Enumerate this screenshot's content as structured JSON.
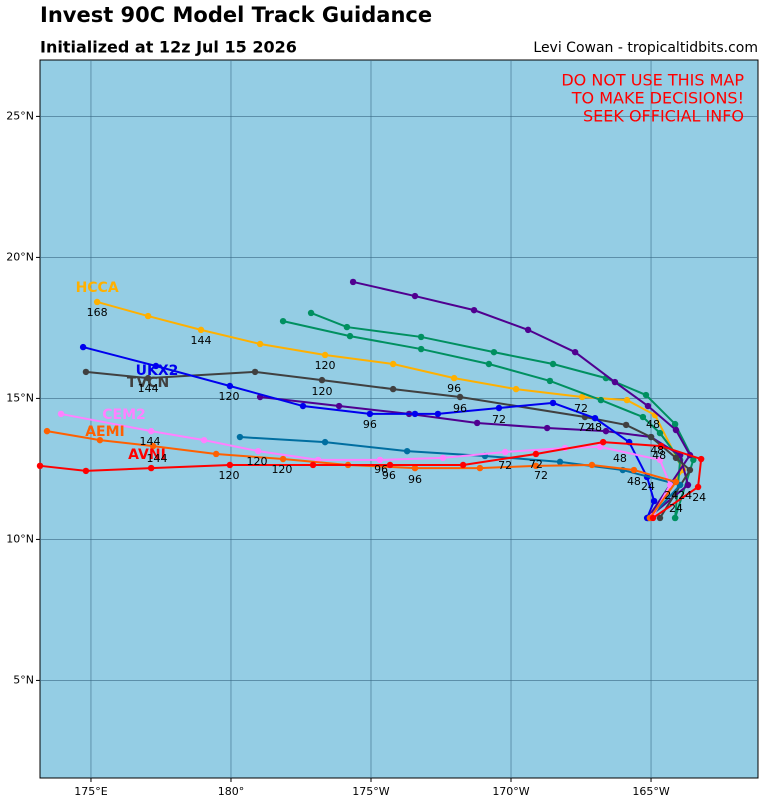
{
  "chart_data": {
    "type": "line",
    "title": "Invest 90C Model Track Guidance",
    "subtitle": "Initialized at 12z Jul 15 2026",
    "credit": "Levi Cowan - tropicaltidbits.com",
    "warning": [
      "DO NOT USE THIS MAP",
      "TO MAKE DECISIONS!",
      "SEEK OFFICIAL INFO"
    ],
    "xlim": [
      173.18,
      198.82
    ],
    "ylim": [
      1.54,
      27
    ],
    "xticks": [
      {
        "value": 175,
        "label": "175°E"
      },
      {
        "value": 180,
        "label": "180°"
      },
      {
        "value": 185,
        "label": "175°W"
      },
      {
        "value": 190,
        "label": "170°W"
      },
      {
        "value": 195,
        "label": "165°W"
      }
    ],
    "yticks": [
      {
        "value": 5,
        "label": "5°N"
      },
      {
        "value": 10,
        "label": "10°N"
      },
      {
        "value": 15,
        "label": "15°N"
      },
      {
        "value": 20,
        "label": "20°N"
      },
      {
        "value": 25,
        "label": "25°N"
      }
    ],
    "grid": true,
    "series": [
      {
        "name": "HCCA",
        "color": "#ffb000",
        "label_at": [
          175.22,
          18.91
        ],
        "x": [
          194.86,
          196.14,
          195.14,
          194.14,
          192.54,
          190.18,
          187.97,
          185.79,
          183.36,
          181.04,
          178.93,
          177.04,
          175.22
        ],
        "values": [
          10.76,
          12.46,
          14.41,
          14.94,
          15.05,
          15.33,
          15.72,
          16.22,
          16.54,
          16.93,
          17.43,
          17.92,
          18.42
        ]
      },
      {
        "color": "#009060",
        "x": [
          195.86,
          196.51,
          195.86,
          194.82,
          193.39,
          191.5,
          189.39,
          186.79,
          184.14,
          182.86
        ],
        "values": [
          10.76,
          12.82,
          14.09,
          15.12,
          15.72,
          16.22,
          16.64,
          17.18,
          17.53,
          18.03
        ]
      },
      {
        "color": "#009060",
        "x": [
          195.86,
          196.04,
          195.32,
          194.71,
          193.21,
          191.39,
          189.21,
          186.79,
          184.25,
          181.86
        ],
        "values": [
          10.76,
          12.82,
          13.77,
          14.34,
          14.94,
          15.62,
          16.22,
          16.75,
          17.21,
          17.74
        ]
      },
      {
        "color": "#500090",
        "x": [
          194.89,
          196.39,
          195.89,
          194.89,
          193.71,
          192.29,
          190.61,
          188.68,
          186.57,
          184.36
        ],
        "values": [
          10.76,
          12.99,
          13.88,
          14.73,
          15.58,
          16.64,
          17.43,
          18.13,
          18.63,
          19.13
        ]
      },
      {
        "color": "#500090",
        "x": [
          194.89,
          196.32,
          196.04,
          195.0,
          193.39,
          191.29,
          188.79,
          186.36,
          183.86,
          181.04
        ],
        "values": [
          10.76,
          11.93,
          12.99,
          13.63,
          13.84,
          13.95,
          14.13,
          14.45,
          14.73,
          15.05
        ]
      },
      {
        "name": "TVCN",
        "color": "#404040",
        "label_at": [
          177.04,
          15.54
        ],
        "x": [
          195.32,
          196.39,
          195.89,
          195.0,
          194.11,
          192.64,
          188.18,
          185.79,
          183.25,
          180.86,
          177.04,
          174.82
        ],
        "values": [
          10.76,
          12.46,
          12.89,
          13.63,
          14.06,
          14.34,
          15.05,
          15.33,
          15.65,
          15.94,
          15.72,
          15.94
        ]
      },
      {
        "name": "UKX2",
        "color": "#0000ee",
        "label_at": [
          177.36,
          15.97
        ],
        "x": [
          194.86,
          195.11,
          194.86,
          194.22,
          193.0,
          191.5,
          189.57,
          187.39,
          186.57,
          184.96,
          182.57,
          179.96,
          177.32,
          174.72
        ],
        "values": [
          10.76,
          11.36,
          12.21,
          13.45,
          14.3,
          14.84,
          14.66,
          14.45,
          14.45,
          14.45,
          14.73,
          15.44,
          16.15,
          16.82
        ]
      },
      {
        "color": "#006ea0",
        "x": [
          194.96,
          196.04,
          193.99,
          191.75,
          189.07,
          186.29,
          183.36,
          180.32
        ],
        "values": [
          10.76,
          11.93,
          12.46,
          12.75,
          12.96,
          13.13,
          13.45,
          13.63
        ]
      },
      {
        "name": "CEM2",
        "color": "#ff80ff",
        "label_at": [
          176.18,
          14.41
        ],
        "x": [
          195.07,
          195.68,
          195.32,
          193.18,
          191.93,
          189.79,
          187.57,
          185.32,
          183.11,
          180.97,
          179.04,
          177.15,
          173.93
        ],
        "values": [
          10.83,
          11.93,
          12.82,
          13.28,
          13.24,
          13.1,
          12.89,
          12.82,
          12.82,
          13.13,
          13.52,
          13.84,
          14.45
        ]
      },
      {
        "name": "AEMI",
        "color": "#ff6000",
        "label_at": [
          175.5,
          13.81
        ],
        "x": [
          194.96,
          195.89,
          194.39,
          192.89,
          190.89,
          188.89,
          186.57,
          184.18,
          181.86,
          179.47,
          177.22,
          175.32,
          173.43
        ],
        "values": [
          10.76,
          12.04,
          12.46,
          12.64,
          12.61,
          12.53,
          12.53,
          12.64,
          12.85,
          13.03,
          13.31,
          13.52,
          13.84
        ]
      },
      {
        "name": "AVNI",
        "color": "#ff0000",
        "label_at": [
          177.0,
          12.99
        ],
        "x": [
          195.07,
          196.68,
          196.79,
          195.36,
          193.29,
          190.89,
          188.29,
          185.68,
          182.93,
          179.96,
          177.15,
          174.82,
          173.18
        ],
        "values": [
          10.76,
          11.86,
          12.85,
          13.31,
          13.45,
          13.03,
          12.64,
          12.64,
          12.64,
          12.64,
          12.53,
          12.43,
          12.61
        ]
      }
    ],
    "hour_labels": [
      {
        "lon": 175.22,
        "lat": 18.03,
        "text": "168"
      },
      {
        "lon": 178.93,
        "lat": 17.04,
        "text": "144"
      },
      {
        "lon": 177.04,
        "lat": 15.33,
        "text": "144"
      },
      {
        "lon": 177.11,
        "lat": 13.45,
        "text": "144"
      },
      {
        "lon": 177.36,
        "lat": 12.85,
        "text": "144"
      },
      {
        "lon": 183.36,
        "lat": 16.15,
        "text": "120"
      },
      {
        "lon": 179.93,
        "lat": 15.05,
        "text": "120"
      },
      {
        "lon": 183.25,
        "lat": 15.23,
        "text": "120"
      },
      {
        "lon": 180.93,
        "lat": 12.74,
        "text": "120"
      },
      {
        "lon": 179.93,
        "lat": 12.25,
        "text": "120"
      },
      {
        "lon": 181.82,
        "lat": 12.46,
        "text": "120"
      },
      {
        "lon": 187.97,
        "lat": 15.33,
        "text": "96"
      },
      {
        "lon": 188.18,
        "lat": 14.62,
        "text": "96"
      },
      {
        "lon": 184.96,
        "lat": 14.06,
        "text": "96"
      },
      {
        "lon": 185.36,
        "lat": 12.46,
        "text": "96"
      },
      {
        "lon": 185.64,
        "lat": 12.25,
        "text": "96"
      },
      {
        "lon": 186.57,
        "lat": 12.11,
        "text": "96"
      },
      {
        "lon": 192.5,
        "lat": 14.62,
        "text": "72"
      },
      {
        "lon": 189.57,
        "lat": 14.23,
        "text": "72"
      },
      {
        "lon": 192.64,
        "lat": 13.95,
        "text": "72"
      },
      {
        "lon": 189.79,
        "lat": 12.6,
        "text": "72"
      },
      {
        "lon": 190.89,
        "lat": 12.64,
        "text": "72"
      },
      {
        "lon": 191.07,
        "lat": 12.25,
        "text": "72"
      },
      {
        "lon": 193.0,
        "lat": 13.95,
        "text": "48"
      },
      {
        "lon": 195.07,
        "lat": 14.06,
        "text": "48"
      },
      {
        "lon": 195.22,
        "lat": 13.13,
        "text": "48"
      },
      {
        "lon": 195.29,
        "lat": 12.96,
        "text": "48"
      },
      {
        "lon": 193.89,
        "lat": 12.85,
        "text": "48"
      },
      {
        "lon": 194.39,
        "lat": 12.04,
        "text": "48"
      },
      {
        "lon": 194.89,
        "lat": 11.86,
        "text": "24"
      },
      {
        "lon": 195.72,
        "lat": 11.54,
        "text": "24"
      },
      {
        "lon": 196.22,
        "lat": 11.54,
        "text": "24"
      },
      {
        "lon": 196.72,
        "lat": 11.47,
        "text": "24"
      },
      {
        "lon": 195.89,
        "lat": 11.08,
        "text": "24"
      }
    ]
  }
}
